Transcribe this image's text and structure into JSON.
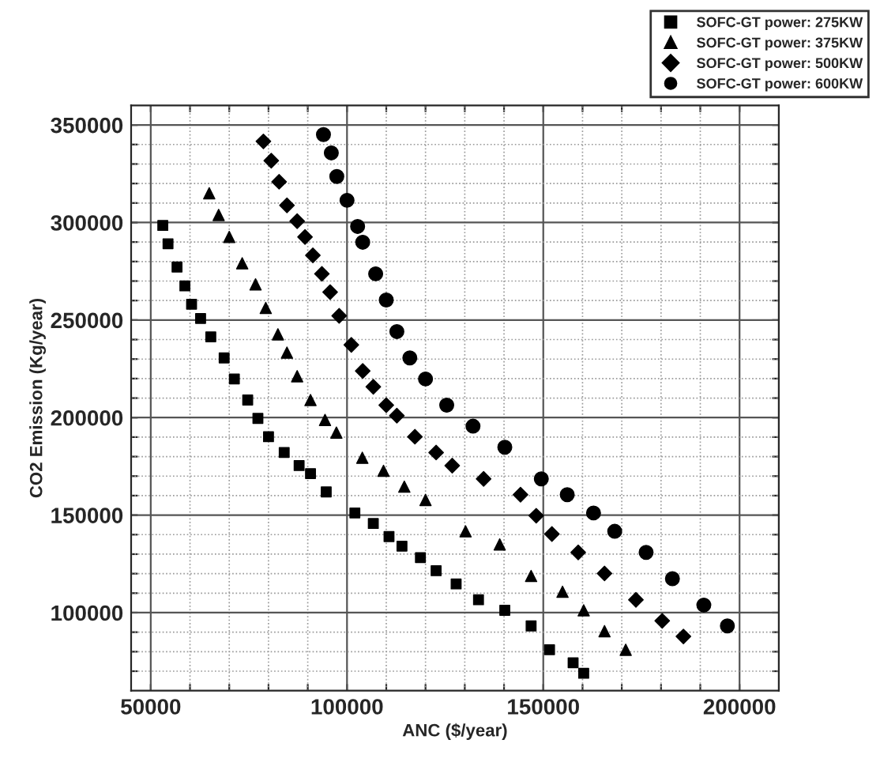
{
  "chart_data": {
    "type": "scatter",
    "xlabel": "ANC ($/year)",
    "ylabel": "CO2 Emission (Kg/year)",
    "xlim": [
      45000,
      210000
    ],
    "ylim": [
      60000,
      360000
    ],
    "xticks": [
      {
        "value": 50000,
        "label": "50000"
      },
      {
        "value": 60000,
        "label": null
      },
      {
        "value": 70000,
        "label": null
      },
      {
        "value": 80000,
        "label": null
      },
      {
        "value": 90000,
        "label": null
      },
      {
        "value": 100000,
        "label": "100000"
      },
      {
        "value": 110000,
        "label": null
      },
      {
        "value": 120000,
        "label": null
      },
      {
        "value": 130000,
        "label": null
      },
      {
        "value": 140000,
        "label": null
      },
      {
        "value": 150000,
        "label": "150000"
      },
      {
        "value": 160000,
        "label": null
      },
      {
        "value": 170000,
        "label": null
      },
      {
        "value": 180000,
        "label": null
      },
      {
        "value": 190000,
        "label": null
      },
      {
        "value": 200000,
        "label": "200000"
      }
    ],
    "yticks": [
      {
        "value": 70000,
        "label": null
      },
      {
        "value": 80000,
        "label": null
      },
      {
        "value": 90000,
        "label": null
      },
      {
        "value": 100000,
        "label": "100000"
      },
      {
        "value": 110000,
        "label": null
      },
      {
        "value": 120000,
        "label": null
      },
      {
        "value": 130000,
        "label": null
      },
      {
        "value": 140000,
        "label": null
      },
      {
        "value": 150000,
        "label": "150000"
      },
      {
        "value": 160000,
        "label": null
      },
      {
        "value": 170000,
        "label": null
      },
      {
        "value": 180000,
        "label": null
      },
      {
        "value": 190000,
        "label": null
      },
      {
        "value": 200000,
        "label": "200000"
      },
      {
        "value": 210000,
        "label": null
      },
      {
        "value": 220000,
        "label": null
      },
      {
        "value": 230000,
        "label": null
      },
      {
        "value": 240000,
        "label": null
      },
      {
        "value": 250000,
        "label": "250000"
      },
      {
        "value": 260000,
        "label": null
      },
      {
        "value": 270000,
        "label": null
      },
      {
        "value": 280000,
        "label": null
      },
      {
        "value": 290000,
        "label": null
      },
      {
        "value": 300000,
        "label": "300000"
      },
      {
        "value": 310000,
        "label": null
      },
      {
        "value": 320000,
        "label": null
      },
      {
        "value": 330000,
        "label": null
      },
      {
        "value": 340000,
        "label": null
      },
      {
        "value": 350000,
        "label": "350000"
      }
    ],
    "grid": true,
    "legend": "top right",
    "series": [
      {
        "name": "SOFC-GT power: 275KW",
        "color": "#000000",
        "marker": "square",
        "x": [
          53070,
          54400,
          56700,
          58700,
          60400,
          62700,
          65300,
          68700,
          71300,
          74700,
          77300,
          80000,
          84000,
          87800,
          90700,
          94700,
          102000,
          106700,
          110700,
          114000,
          118700,
          122700,
          127800,
          133500,
          140200,
          146900,
          151600,
          157600,
          160300
        ],
        "values": [
          298500,
          289100,
          277200,
          267500,
          258100,
          250800,
          241400,
          230600,
          219800,
          209000,
          199600,
          190200,
          182100,
          175400,
          171300,
          161900,
          151100,
          145700,
          139000,
          134100,
          128200,
          121500,
          114700,
          106600,
          101200,
          93200,
          81000,
          74300,
          68900
        ]
      },
      {
        "name": "SOFC-GT power: 375KW",
        "color": "#000000",
        "marker": "triangle",
        "x": [
          64900,
          67300,
          70000,
          73300,
          76700,
          79300,
          82400,
          84700,
          87300,
          90700,
          94400,
          97300,
          103900,
          109300,
          114600,
          120000,
          130200,
          138900,
          146900,
          154900,
          160300,
          165600,
          171000
        ],
        "values": [
          315000,
          303900,
          292600,
          279100,
          268300,
          256200,
          242700,
          233300,
          221200,
          209000,
          198800,
          192300,
          179400,
          172700,
          164600,
          157800,
          141700,
          135000,
          118800,
          110700,
          101200,
          90500,
          81000
        ]
      },
      {
        "name": "SOFC-GT power: 500KW",
        "color": "#000000",
        "marker": "diamond",
        "x": [
          78700,
          80700,
          82700,
          84700,
          87300,
          89300,
          91300,
          93600,
          95700,
          98000,
          101100,
          104000,
          106700,
          110000,
          112700,
          117300,
          122700,
          126800,
          134800,
          144200,
          148200,
          152200,
          158900,
          165600,
          173600,
          180300,
          185700
        ],
        "values": [
          341600,
          331700,
          320900,
          308800,
          300700,
          292600,
          283200,
          273700,
          264300,
          252200,
          237300,
          223900,
          215800,
          206400,
          201000,
          190200,
          182100,
          175400,
          168600,
          160500,
          149700,
          140300,
          130900,
          120100,
          106600,
          95800,
          87800
        ]
      },
      {
        "name": "SOFC-GT power: 600KW",
        "color": "#000000",
        "marker": "circle",
        "x": [
          94000,
          96000,
          97400,
          100000,
          102700,
          104000,
          107300,
          110000,
          112700,
          116000,
          120000,
          125400,
          132100,
          140200,
          149500,
          156100,
          162800,
          168200,
          176200,
          182900,
          190900,
          196900
        ],
        "values": [
          345100,
          335700,
          323600,
          311400,
          298000,
          289900,
          273700,
          260300,
          244100,
          230600,
          219800,
          206400,
          195600,
          184800,
          168600,
          160500,
          151100,
          141700,
          130900,
          117400,
          103900,
          93200
        ]
      }
    ]
  }
}
